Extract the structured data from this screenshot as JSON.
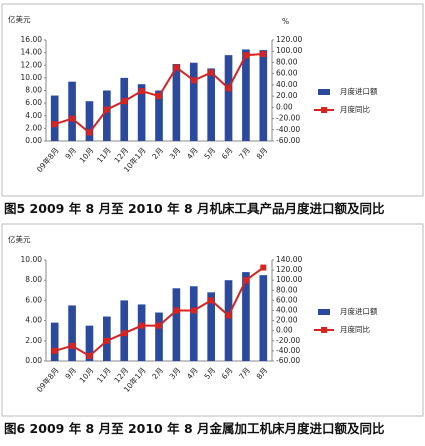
{
  "chart_data": [
    {
      "type": "bar",
      "y_label": "亿美元",
      "y2_label": "%",
      "caption": "图5  2009 年 8 月至 2010 年 8 月机床工具产品月度进口额及同比",
      "categories": [
        "09年8月",
        "9月",
        "10月",
        "11月",
        "12月",
        "10年1月",
        "2月",
        "3月",
        "4月",
        "5月",
        "6月",
        "7月",
        "8月"
      ],
      "series": [
        {
          "name": "月度进口额",
          "color": "#2b4a9e",
          "values": [
            7.2,
            9.4,
            6.3,
            8.0,
            10.0,
            9.0,
            8.0,
            12.2,
            12.4,
            11.5,
            13.6,
            14.5,
            14.4
          ]
        },
        {
          "name": "月度同比",
          "color": "#d8231f",
          "axis": "y2",
          "values": [
            -30,
            -20,
            -45,
            -4,
            11,
            29,
            20,
            71,
            48,
            62,
            34,
            93,
            95
          ]
        }
      ],
      "ylim": [
        0,
        16
      ],
      "yticks": [
        {
          "value": 0,
          "label": "0.00"
        },
        {
          "value": 2,
          "label": "2.00"
        },
        {
          "value": 4,
          "label": "4.00"
        },
        {
          "value": 6,
          "label": "6.00"
        },
        {
          "value": 8,
          "label": "8.00"
        },
        {
          "value": 10,
          "label": "10.00"
        },
        {
          "value": 12,
          "label": "12.00"
        },
        {
          "value": 14,
          "label": "14.00"
        },
        {
          "value": 16,
          "label": "16.00"
        }
      ],
      "y2lim": [
        -60,
        120
      ],
      "y2ticks": [
        {
          "value": -60,
          "label": "-60.00"
        },
        {
          "value": -40,
          "label": "-40.00"
        },
        {
          "value": -20,
          "label": "-20.00"
        },
        {
          "value": 0,
          "label": "0.00"
        },
        {
          "value": 20,
          "label": "20.00"
        },
        {
          "value": 40,
          "label": "40.00"
        },
        {
          "value": 60,
          "label": "60.00"
        },
        {
          "value": 80,
          "label": "80.00"
        },
        {
          "value": 100,
          "label": "100.00"
        },
        {
          "value": 120,
          "label": "120.00"
        }
      ],
      "legend": "right"
    },
    {
      "type": "bar",
      "y_label": "亿美元",
      "caption": "图6  2009 年 8 月至 2010 年 8 月金属加工机床月度进口额及同比",
      "categories": [
        "09年8月",
        "9月",
        "10月",
        "11月",
        "12月",
        "10年1月",
        "2月",
        "3月",
        "4月",
        "5月",
        "6月",
        "7月",
        "8月"
      ],
      "series": [
        {
          "name": "月度进口额",
          "color": "#2b4a9e",
          "values": [
            3.8,
            5.5,
            3.5,
            4.4,
            6.0,
            5.6,
            4.8,
            7.2,
            7.4,
            6.8,
            8.0,
            8.8,
            8.5
          ]
        },
        {
          "name": "月度同比",
          "color": "#d8231f",
          "axis": "y2",
          "values": [
            -40,
            -30,
            -50,
            -20,
            -5,
            10,
            10,
            40,
            40,
            60,
            30,
            100,
            125
          ]
        }
      ],
      "ylim": [
        0,
        10
      ],
      "yticks": [
        {
          "value": 0,
          "label": "0.00"
        },
        {
          "value": 2,
          "label": "2.00"
        },
        {
          "value": 4,
          "label": "4.00"
        },
        {
          "value": 6,
          "label": "6.00"
        },
        {
          "value": 8,
          "label": "8.00"
        },
        {
          "value": 10,
          "label": "10.00"
        }
      ],
      "y2lim": [
        -60,
        140
      ],
      "y2ticks": [
        {
          "value": -60,
          "label": "-60.00"
        },
        {
          "value": -40,
          "label": "-40.00"
        },
        {
          "value": -20,
          "label": "-20.00"
        },
        {
          "value": 0,
          "label": "0.00"
        },
        {
          "value": 20,
          "label": "20.00"
        },
        {
          "value": 40,
          "label": "40.00"
        },
        {
          "value": 60,
          "label": "60.00"
        },
        {
          "value": 80,
          "label": "80.00"
        },
        {
          "value": 100,
          "label": "100.00"
        },
        {
          "value": 120,
          "label": "120.00"
        },
        {
          "value": 140,
          "label": "140.00"
        }
      ],
      "legend": "right"
    }
  ]
}
